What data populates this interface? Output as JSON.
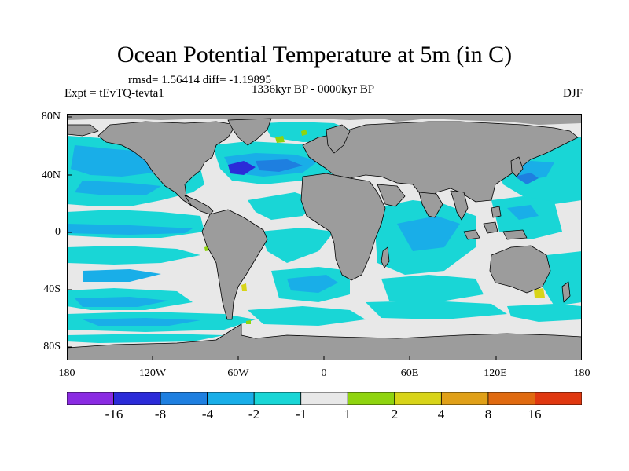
{
  "title": "Ocean Potential Temperature at 5m (in C)",
  "stats": "rmsd= 1.56414 diff= -1.19895",
  "experiment": "Expt = tEvTQ-tevta1",
  "period": "1336kyr BP - 0000kyr BP",
  "season": "DJF",
  "map": {
    "lat_labels": [
      "80N",
      "40N",
      "0",
      "40S",
      "80S"
    ],
    "lon_labels": [
      "180",
      "120W",
      "60W",
      "0",
      "60E",
      "120E",
      "180"
    ],
    "colors": {
      "land": "#9c9c9c",
      "ocean_background": "#e8e8e8",
      "coastline": "#000000"
    }
  },
  "colorbar": {
    "labels": [
      "-16",
      "-8",
      "-4",
      "-2",
      "-1",
      "1",
      "2",
      "4",
      "8",
      "16"
    ],
    "colors": [
      "#8a2be2",
      "#2b2bd8",
      "#1e7fe0",
      "#19aee8",
      "#19d6d6",
      "#e8e8e8",
      "#8fd40f",
      "#d8d418",
      "#e0a018",
      "#e06a10",
      "#e03810"
    ]
  }
}
